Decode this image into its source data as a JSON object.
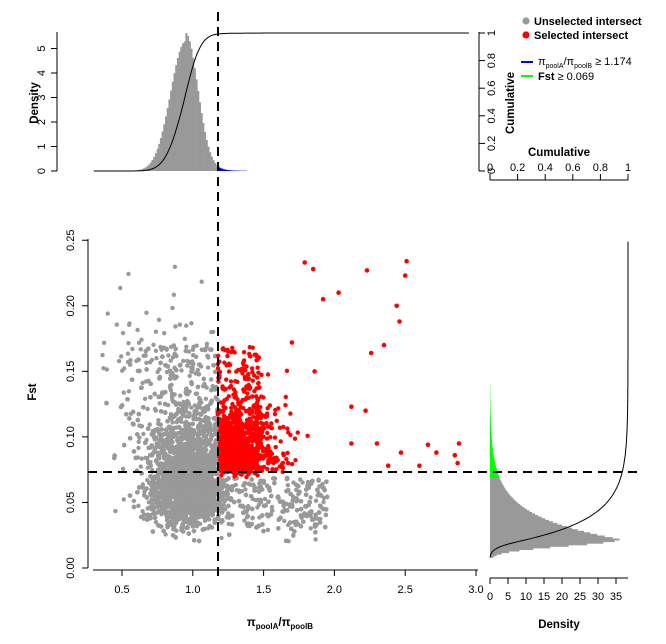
{
  "chart_data": {
    "type": "scatter",
    "title": "",
    "xlabel": "π_poolA/π_poolB",
    "ylabel": "Fst",
    "xlim": [
      0.3,
      3.0
    ],
    "ylim": [
      0.0,
      0.25
    ],
    "xticks": [
      "0.5",
      "1.0",
      "1.5",
      "2.0",
      "2.5",
      "3.0"
    ],
    "yticks": [
      "0.00",
      "0.05",
      "0.10",
      "0.15",
      "0.20",
      "0.25"
    ],
    "thresholds": {
      "pi_ratio": 1.174,
      "fst": 0.069
    },
    "series": [
      {
        "name": "Unselected intersect",
        "color": "#999999",
        "n_points": 9000
      },
      {
        "name": "Selected intersect",
        "color": "#ff0000",
        "outliers": [
          [
            1.79,
            0.233
          ],
          [
            1.85,
            0.228
          ],
          [
            1.92,
            0.205
          ],
          [
            2.03,
            0.21
          ],
          [
            2.23,
            0.227
          ],
          [
            2.51,
            0.234
          ],
          [
            2.5,
            0.223
          ],
          [
            2.44,
            0.2
          ],
          [
            2.46,
            0.188
          ],
          [
            2.35,
            0.17
          ],
          [
            2.26,
            0.164
          ],
          [
            2.12,
            0.123
          ],
          [
            2.22,
            0.12
          ],
          [
            2.3,
            0.095
          ],
          [
            2.47,
            0.088
          ],
          [
            2.66,
            0.094
          ],
          [
            2.72,
            0.088
          ],
          [
            2.88,
            0.095
          ],
          [
            2.85,
            0.086
          ],
          [
            2.87,
            0.08
          ],
          [
            2.6,
            0.078
          ],
          [
            2.38,
            0.078
          ],
          [
            1.7,
            0.172
          ],
          [
            1.86,
            0.15
          ],
          [
            2.12,
            0.095
          ]
        ]
      }
    ],
    "top_panel": {
      "ylabel": "Density",
      "ylim": [
        0,
        5.5
      ],
      "yticks": [
        "0",
        "1",
        "2",
        "3",
        "4",
        "5"
      ],
      "right_label": "Cumulative",
      "right_ticks": [
        "0",
        "0.2",
        "0.4",
        "0.6",
        "0.8",
        "1"
      ],
      "mean": 0.95,
      "sd": 0.085,
      "peak_density": 5.3,
      "tail_color": "#0000ff"
    },
    "right_panel": {
      "xlabel": "Density",
      "xlim": [
        0,
        38
      ],
      "xticks": [
        "0",
        "5",
        "10",
        "15",
        "20",
        "25",
        "30",
        "35"
      ],
      "top_label": "Cumulative",
      "top_ticks": [
        "0",
        "0.2",
        "0.4",
        "0.6",
        "0.8",
        "1"
      ],
      "mode": 0.022,
      "peak_density": 36,
      "tail_color": "#00ff00"
    },
    "legend": {
      "position": "top-right",
      "items": [
        {
          "label": "Unselected intersect",
          "color": "#999999",
          "kind": "point"
        },
        {
          "label": "Selected intersect",
          "color": "#ff0000",
          "kind": "point"
        }
      ],
      "lines": [
        {
          "math": "π_poolA/π_poolB",
          "sub1": "poolA",
          "sub2": "poolB",
          "op": "≥ 1.174",
          "color": "#0000ff"
        },
        {
          "math": "Fst",
          "op": "≥ 0.069",
          "color": "#00ff00"
        }
      ]
    }
  }
}
